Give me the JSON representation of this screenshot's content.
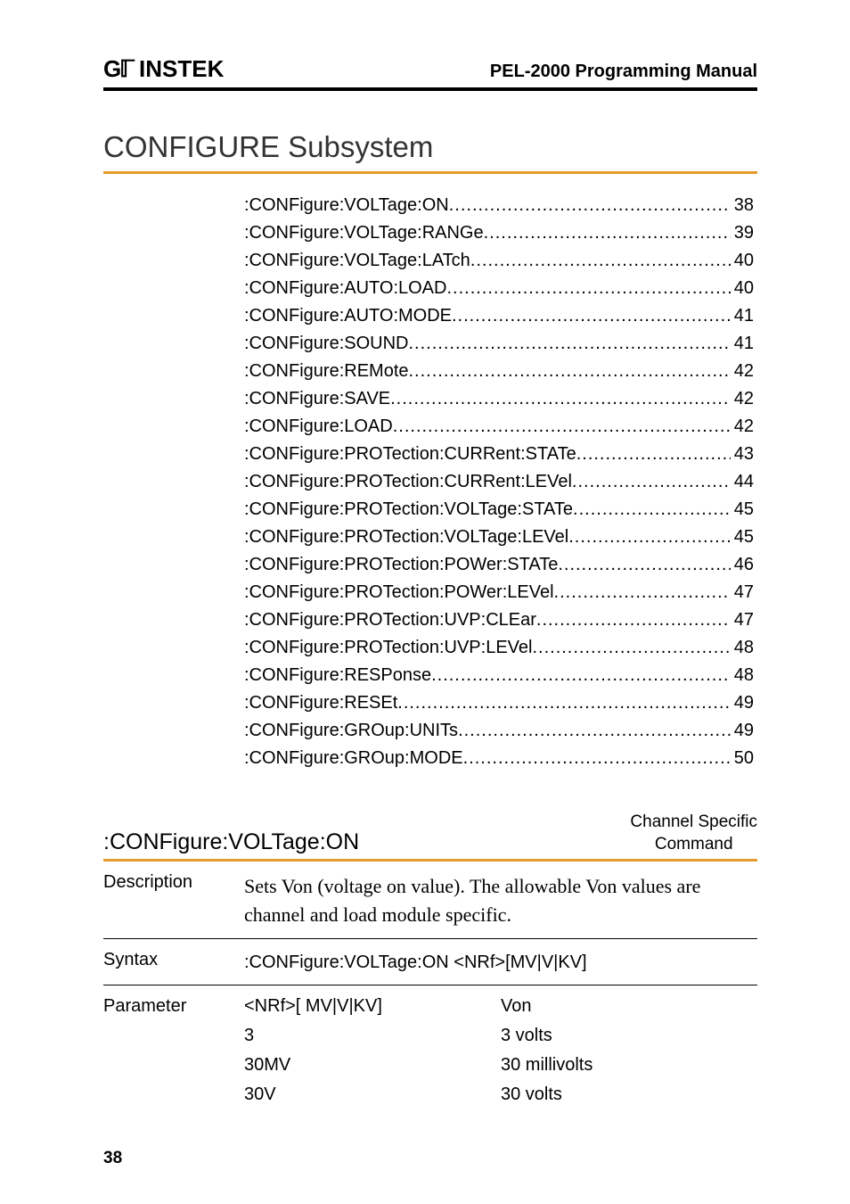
{
  "header": {
    "logo_text": "GW INSTEK",
    "manual_title": "PEL-2000 Programming Manual"
  },
  "section": {
    "title": "CONFIGURE Subsystem",
    "underline_color": "#e59a2e"
  },
  "toc": [
    {
      "label": ":CONFigure:VOLTage:ON",
      "page": "38"
    },
    {
      "label": ":CONFigure:VOLTage:RANGe",
      "page": "39"
    },
    {
      "label": ":CONFigure:VOLTage:LATch",
      "page": "40"
    },
    {
      "label": ":CONFigure:AUTO:LOAD",
      "page": "40"
    },
    {
      "label": ":CONFigure:AUTO:MODE",
      "page": "41"
    },
    {
      "label": ":CONFigure:SOUND",
      "page": "41"
    },
    {
      "label": ":CONFigure:REMote",
      "page": "42"
    },
    {
      "label": ":CONFigure:SAVE",
      "page": "42"
    },
    {
      "label": ":CONFigure:LOAD",
      "page": "42"
    },
    {
      "label": ":CONFigure:PROTection:CURRent:STATe",
      "page": "43"
    },
    {
      "label": ":CONFigure:PROTection:CURRent:LEVel",
      "page": "44"
    },
    {
      "label": ":CONFigure:PROTection:VOLTage:STATe",
      "page": "45"
    },
    {
      "label": ":CONFigure:PROTection:VOLTage:LEVel",
      "page": "45"
    },
    {
      "label": ":CONFigure:PROTection:POWer:STATe",
      "page": "46"
    },
    {
      "label": ":CONFigure:PROTection:POWer:LEVel",
      "page": "47"
    },
    {
      "label": ":CONFigure:PROTection:UVP:CLEar",
      "page": "47"
    },
    {
      "label": ":CONFigure:PROTection:UVP:LEVel",
      "page": "48"
    },
    {
      "label": ":CONFigure:RESPonse",
      "page": "48"
    },
    {
      "label": ":CONFigure:RESEt",
      "page": "49"
    },
    {
      "label": ":CONFigure:GROup:UNITs",
      "page": "49"
    },
    {
      "label": ":CONFigure:GROup:MODE",
      "page": "50"
    }
  ],
  "command": {
    "name": ":CONFigure:VOLTage:ON",
    "badge_line1": "Channel Specific",
    "badge_line2": "Command",
    "description_label": "Description",
    "description_text": "Sets Von (voltage on value). The allowable Von values are channel and load module specific.",
    "syntax_label": "Syntax",
    "syntax_text": ":CONFigure:VOLTage:ON <NRf>[MV|V|KV]",
    "parameter_label": "Parameter",
    "parameters": [
      {
        "k": "<NRf>[ MV|V|KV]",
        "v": "Von"
      },
      {
        "k": "3",
        "v": "3 volts"
      },
      {
        "k": "30MV",
        "v": "30 millivolts"
      },
      {
        "k": "30V",
        "v": "30 volts"
      }
    ]
  },
  "page_number": "38",
  "colors": {
    "text": "#000000",
    "accent": "#e59a2e",
    "background": "#ffffff"
  },
  "typography": {
    "body_font": "Georgia",
    "heading_font": "Verdana",
    "section_title_size_pt": 25,
    "toc_size_pt": 15,
    "header_title_size_pt": 15
  }
}
